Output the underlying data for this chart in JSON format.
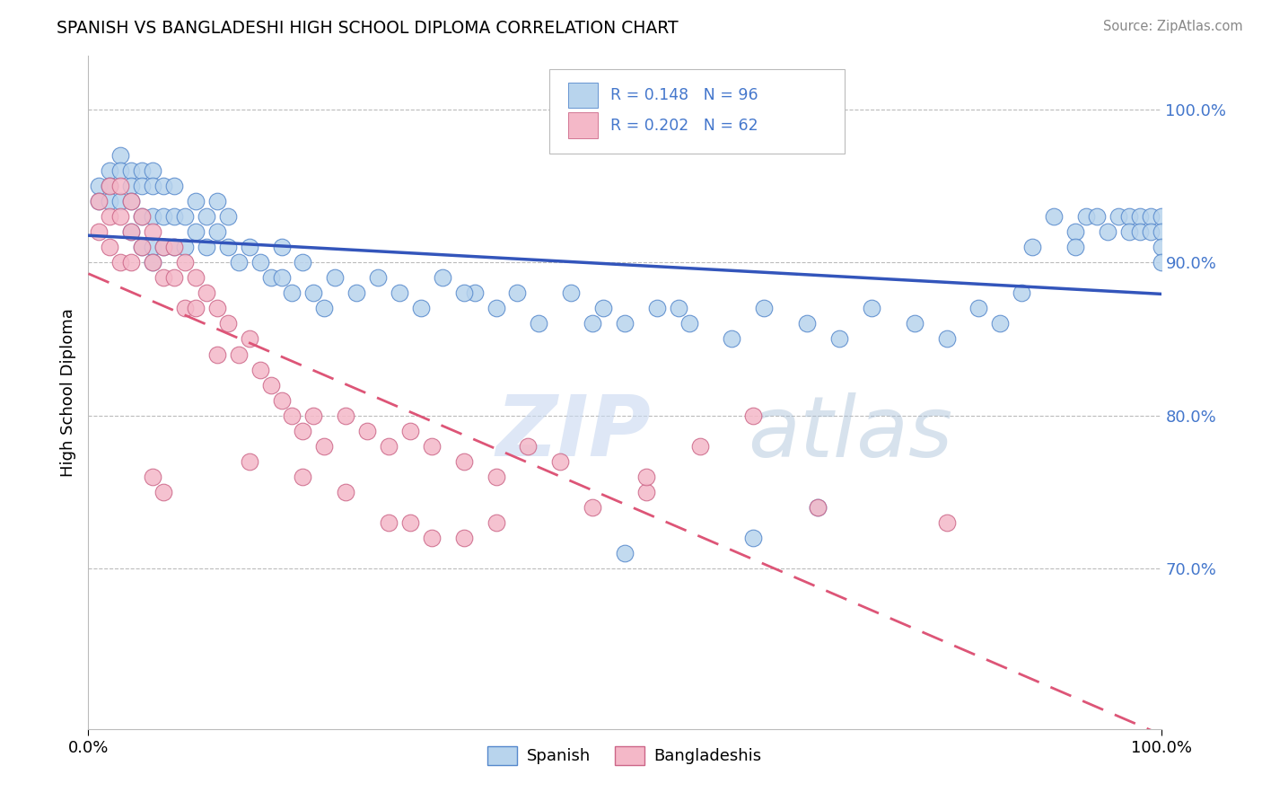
{
  "title": "SPANISH VS BANGLADESHI HIGH SCHOOL DIPLOMA CORRELATION CHART",
  "source": "Source: ZipAtlas.com",
  "ylabel": "High School Diploma",
  "legend_spanish": "Spanish",
  "legend_bangladeshi": "Bangladeshis",
  "R_spanish": 0.148,
  "N_spanish": 96,
  "R_bangladeshi": 0.202,
  "N_bangladeshi": 62,
  "color_spanish": "#b8d4ed",
  "color_bangladeshi": "#f4b8c8",
  "color_spanish_edge": "#5588cc",
  "color_bangladeshi_edge": "#cc6688",
  "color_spanish_line": "#3355bb",
  "color_bangladeshi_line": "#dd5577",
  "color_axis_text": "#4477cc",
  "yticks": [
    0.7,
    0.8,
    0.9,
    1.0
  ],
  "ytick_labels": [
    "70.0%",
    "80.0%",
    "90.0%",
    "100.0%"
  ],
  "ylim": [
    0.595,
    1.035
  ],
  "xlim": [
    0.0,
    1.0
  ],
  "spanish_x": [
    0.01,
    0.01,
    0.02,
    0.02,
    0.02,
    0.03,
    0.03,
    0.03,
    0.04,
    0.04,
    0.04,
    0.04,
    0.05,
    0.05,
    0.05,
    0.05,
    0.06,
    0.06,
    0.06,
    0.06,
    0.06,
    0.07,
    0.07,
    0.07,
    0.08,
    0.08,
    0.08,
    0.09,
    0.09,
    0.1,
    0.1,
    0.11,
    0.11,
    0.12,
    0.12,
    0.13,
    0.13,
    0.14,
    0.15,
    0.16,
    0.17,
    0.18,
    0.18,
    0.19,
    0.2,
    0.21,
    0.22,
    0.23,
    0.25,
    0.27,
    0.29,
    0.31,
    0.33,
    0.36,
    0.38,
    0.4,
    0.42,
    0.45,
    0.48,
    0.5,
    0.53,
    0.56,
    0.6,
    0.63,
    0.67,
    0.7,
    0.73,
    0.77,
    0.8,
    0.83,
    0.85,
    0.87,
    0.9,
    0.92,
    0.93,
    0.94,
    0.95,
    0.96,
    0.97,
    0.97,
    0.98,
    0.98,
    0.99,
    0.99,
    1.0,
    1.0,
    1.0,
    1.0,
    0.35,
    0.47,
    0.5,
    0.55,
    0.62,
    0.68,
    0.88,
    0.92
  ],
  "spanish_y": [
    0.95,
    0.94,
    0.96,
    0.95,
    0.94,
    0.97,
    0.96,
    0.94,
    0.96,
    0.95,
    0.94,
    0.92,
    0.96,
    0.95,
    0.93,
    0.91,
    0.96,
    0.95,
    0.93,
    0.91,
    0.9,
    0.95,
    0.93,
    0.91,
    0.95,
    0.93,
    0.91,
    0.93,
    0.91,
    0.94,
    0.92,
    0.93,
    0.91,
    0.94,
    0.92,
    0.93,
    0.91,
    0.9,
    0.91,
    0.9,
    0.89,
    0.91,
    0.89,
    0.88,
    0.9,
    0.88,
    0.87,
    0.89,
    0.88,
    0.89,
    0.88,
    0.87,
    0.89,
    0.88,
    0.87,
    0.88,
    0.86,
    0.88,
    0.87,
    0.86,
    0.87,
    0.86,
    0.85,
    0.87,
    0.86,
    0.85,
    0.87,
    0.86,
    0.85,
    0.87,
    0.86,
    0.88,
    0.93,
    0.92,
    0.93,
    0.93,
    0.92,
    0.93,
    0.93,
    0.92,
    0.93,
    0.92,
    0.93,
    0.92,
    0.93,
    0.92,
    0.91,
    0.9,
    0.88,
    0.86,
    0.71,
    0.87,
    0.72,
    0.74,
    0.91,
    0.91
  ],
  "bangladeshi_x": [
    0.01,
    0.01,
    0.02,
    0.02,
    0.02,
    0.03,
    0.03,
    0.03,
    0.04,
    0.04,
    0.04,
    0.05,
    0.05,
    0.06,
    0.06,
    0.07,
    0.07,
    0.08,
    0.08,
    0.09,
    0.09,
    0.1,
    0.1,
    0.11,
    0.12,
    0.12,
    0.13,
    0.14,
    0.15,
    0.16,
    0.17,
    0.18,
    0.19,
    0.2,
    0.21,
    0.22,
    0.24,
    0.26,
    0.28,
    0.3,
    0.32,
    0.35,
    0.38,
    0.41,
    0.44,
    0.47,
    0.52,
    0.57,
    0.62,
    0.52,
    0.15,
    0.2,
    0.24,
    0.28,
    0.3,
    0.32,
    0.35,
    0.38,
    0.68,
    0.8,
    0.06,
    0.07
  ],
  "bangladeshi_y": [
    0.94,
    0.92,
    0.95,
    0.93,
    0.91,
    0.95,
    0.93,
    0.9,
    0.94,
    0.92,
    0.9,
    0.93,
    0.91,
    0.92,
    0.9,
    0.91,
    0.89,
    0.91,
    0.89,
    0.9,
    0.87,
    0.89,
    0.87,
    0.88,
    0.87,
    0.84,
    0.86,
    0.84,
    0.85,
    0.83,
    0.82,
    0.81,
    0.8,
    0.79,
    0.8,
    0.78,
    0.8,
    0.79,
    0.78,
    0.79,
    0.78,
    0.77,
    0.76,
    0.78,
    0.77,
    0.74,
    0.75,
    0.78,
    0.8,
    0.76,
    0.77,
    0.76,
    0.75,
    0.73,
    0.73,
    0.72,
    0.72,
    0.73,
    0.74,
    0.73,
    0.76,
    0.75
  ]
}
